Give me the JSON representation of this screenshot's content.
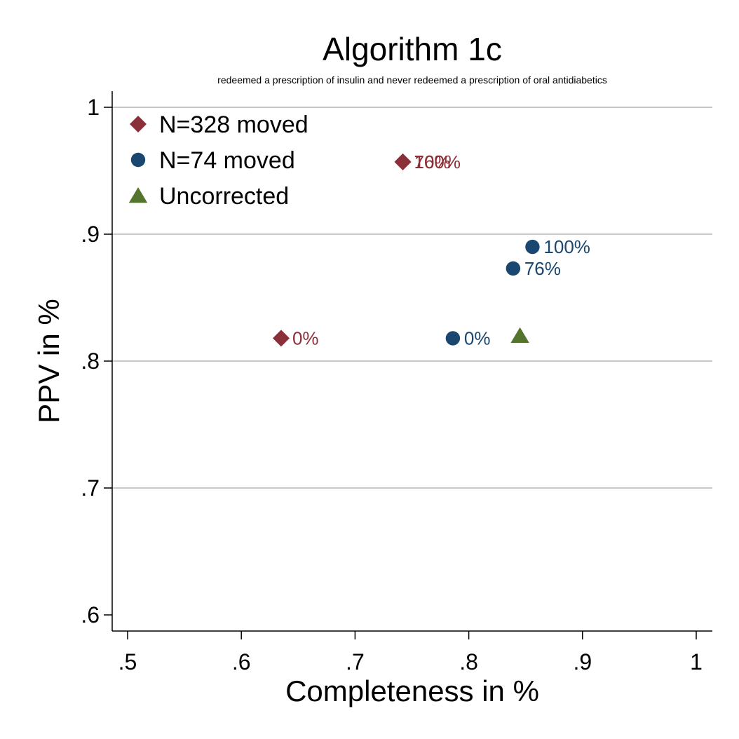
{
  "chart_data": {
    "type": "scatter",
    "title": "Algorithm 1c",
    "subtitle": "redeemed a prescription of insulin and never redeemed a prescription of oral antidiabetics",
    "xlabel": "Completeness in %",
    "ylabel": "PPV in %",
    "xlim": [
      0.5,
      1.0
    ],
    "ylim": [
      0.6,
      1.0
    ],
    "x_ticks": [
      0.5,
      0.6,
      0.7,
      0.8,
      0.9,
      1.0
    ],
    "x_tick_labels": [
      ".5",
      ".6",
      ".7",
      ".8",
      ".9",
      "1"
    ],
    "y_ticks": [
      0.6,
      0.7,
      0.8,
      0.9,
      1.0
    ],
    "y_tick_labels": [
      ".6",
      ".7",
      ".8",
      ".9",
      "1"
    ],
    "grid": "horizontal",
    "legend_position": "top-left",
    "series": [
      {
        "name": "N=328 moved",
        "marker": "diamond",
        "color": "#8B3039",
        "points": [
          {
            "x": 0.635,
            "y": 0.818,
            "label": "0%"
          },
          {
            "x": 0.742,
            "y": 0.957,
            "label": "76%"
          },
          {
            "x": 0.742,
            "y": 0.957,
            "label": "100%"
          }
        ]
      },
      {
        "name": "N=74 moved",
        "marker": "circle",
        "color": "#1A476F",
        "points": [
          {
            "x": 0.786,
            "y": 0.818,
            "label": "0%"
          },
          {
            "x": 0.839,
            "y": 0.873,
            "label": "76%"
          },
          {
            "x": 0.856,
            "y": 0.89,
            "label": "100%"
          }
        ]
      },
      {
        "name": "Uncorrected",
        "marker": "triangle",
        "color": "#55752F",
        "points": [
          {
            "x": 0.845,
            "y": 0.82,
            "label": ""
          }
        ]
      }
    ]
  }
}
